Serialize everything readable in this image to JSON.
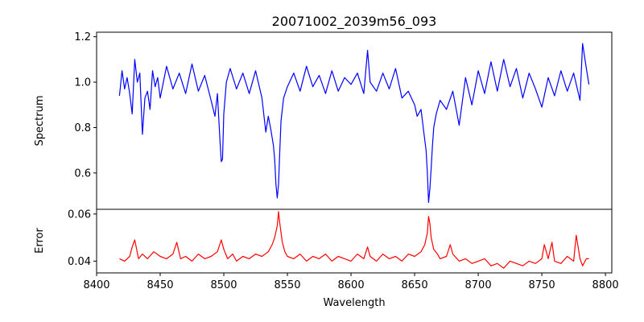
{
  "chart_data": {
    "type": "line",
    "title": "20071002_2039m56_093",
    "xlabel": "Wavelength",
    "xlim": [
      8400,
      8805
    ],
    "xticks": [
      8400,
      8450,
      8500,
      8550,
      8600,
      8650,
      8700,
      8750,
      8800
    ],
    "panels": [
      {
        "name": "spectrum",
        "ylabel": "Spectrum",
        "ylim": [
          0.44,
          1.22
        ],
        "yticks": [
          0.6,
          0.8,
          1.0,
          1.2
        ],
        "ytick_labels": [
          "0.6",
          "0.8",
          "1.0",
          "1.2"
        ],
        "series": [
          {
            "color": "#0000ff",
            "x": [
              8418,
              8420,
              8422,
              8424,
              8426,
              8428,
              8430,
              8432,
              8434,
              8436,
              8438,
              8440,
              8442,
              8444,
              8446,
              8448,
              8450,
              8455,
              8460,
              8465,
              8470,
              8475,
              8480,
              8485,
              8490,
              8493,
              8495,
              8497,
              8498,
              8499,
              8500,
              8502,
              8505,
              8510,
              8515,
              8520,
              8525,
              8530,
              8533,
              8535,
              8537,
              8539,
              8540,
              8541,
              8542,
              8543,
              8544,
              8545,
              8547,
              8550,
              8555,
              8560,
              8565,
              8570,
              8575,
              8580,
              8585,
              8590,
              8595,
              8600,
              8605,
              8610,
              8613,
              8615,
              8620,
              8625,
              8630,
              8635,
              8640,
              8645,
              8650,
              8652,
              8655,
              8657,
              8659,
              8660,
              8661,
              8662,
              8663,
              8664,
              8665,
              8667,
              8670,
              8675,
              8680,
              8685,
              8690,
              8695,
              8700,
              8705,
              8710,
              8715,
              8720,
              8725,
              8730,
              8735,
              8740,
              8745,
              8750,
              8755,
              8760,
              8765,
              8770,
              8775,
              8780,
              8782,
              8785,
              8787
            ],
            "y": [
              0.94,
              1.05,
              0.97,
              1.02,
              0.95,
              0.86,
              1.1,
              1.0,
              1.04,
              0.77,
              0.93,
              0.96,
              0.88,
              1.05,
              0.98,
              1.02,
              0.93,
              1.07,
              0.97,
              1.04,
              0.95,
              1.08,
              0.96,
              1.03,
              0.92,
              0.85,
              0.95,
              0.74,
              0.65,
              0.66,
              0.86,
              1.0,
              1.06,
              0.97,
              1.04,
              0.95,
              1.05,
              0.93,
              0.78,
              0.85,
              0.79,
              0.72,
              0.66,
              0.55,
              0.49,
              0.55,
              0.7,
              0.83,
              0.93,
              0.98,
              1.04,
              0.96,
              1.07,
              0.98,
              1.03,
              0.95,
              1.05,
              0.96,
              1.02,
              0.99,
              1.04,
              0.95,
              1.14,
              1.0,
              0.96,
              1.04,
              0.97,
              1.06,
              0.93,
              0.96,
              0.9,
              0.85,
              0.88,
              0.79,
              0.7,
              0.6,
              0.47,
              0.53,
              0.62,
              0.72,
              0.8,
              0.86,
              0.92,
              0.88,
              0.96,
              0.81,
              1.02,
              0.9,
              1.05,
              0.95,
              1.09,
              0.96,
              1.1,
              0.98,
              1.06,
              0.93,
              1.04,
              0.97,
              0.89,
              1.02,
              0.94,
              1.05,
              0.96,
              1.04,
              0.92,
              1.17,
              1.06,
              0.99
            ]
          }
        ]
      },
      {
        "name": "error",
        "ylabel": "Error",
        "ylim": [
          0.035,
          0.062
        ],
        "yticks": [
          0.04,
          0.06
        ],
        "ytick_labels": [
          "0.04",
          "0.06"
        ],
        "series": [
          {
            "color": "#ff0000",
            "x": [
              8418,
              8422,
              8426,
              8428,
              8430,
              8433,
              8436,
              8440,
              8445,
              8450,
              8455,
              8460,
              8463,
              8466,
              8470,
              8475,
              8480,
              8485,
              8490,
              8495,
              8498,
              8500,
              8503,
              8507,
              8510,
              8515,
              8520,
              8525,
              8530,
              8535,
              8538,
              8540,
              8542,
              8543,
              8544,
              8546,
              8548,
              8550,
              8555,
              8560,
              8565,
              8570,
              8575,
              8580,
              8585,
              8590,
              8595,
              8600,
              8605,
              8610,
              8613,
              8615,
              8620,
              8625,
              8630,
              8635,
              8640,
              8645,
              8650,
              8655,
              8658,
              8660,
              8661,
              8662,
              8663,
              8665,
              8668,
              8670,
              8675,
              8678,
              8680,
              8685,
              8690,
              8695,
              8700,
              8705,
              8710,
              8715,
              8720,
              8725,
              8730,
              8735,
              8740,
              8745,
              8750,
              8752,
              8755,
              8758,
              8760,
              8765,
              8770,
              8775,
              8777,
              8780,
              8782,
              8785,
              8787
            ],
            "y": [
              0.041,
              0.04,
              0.042,
              0.046,
              0.049,
              0.041,
              0.043,
              0.041,
              0.044,
              0.042,
              0.041,
              0.043,
              0.048,
              0.041,
              0.042,
              0.04,
              0.043,
              0.041,
              0.042,
              0.044,
              0.049,
              0.045,
              0.041,
              0.043,
              0.04,
              0.042,
              0.041,
              0.043,
              0.042,
              0.044,
              0.047,
              0.05,
              0.055,
              0.061,
              0.056,
              0.048,
              0.044,
              0.042,
              0.041,
              0.043,
              0.04,
              0.042,
              0.041,
              0.043,
              0.04,
              0.042,
              0.041,
              0.04,
              0.043,
              0.041,
              0.046,
              0.042,
              0.04,
              0.043,
              0.041,
              0.042,
              0.04,
              0.043,
              0.042,
              0.044,
              0.047,
              0.052,
              0.059,
              0.056,
              0.05,
              0.045,
              0.043,
              0.041,
              0.042,
              0.047,
              0.043,
              0.04,
              0.041,
              0.039,
              0.04,
              0.041,
              0.038,
              0.039,
              0.037,
              0.04,
              0.039,
              0.038,
              0.04,
              0.039,
              0.041,
              0.047,
              0.041,
              0.048,
              0.04,
              0.039,
              0.042,
              0.04,
              0.051,
              0.041,
              0.038,
              0.041,
              0.041
            ]
          }
        ]
      }
    ]
  }
}
